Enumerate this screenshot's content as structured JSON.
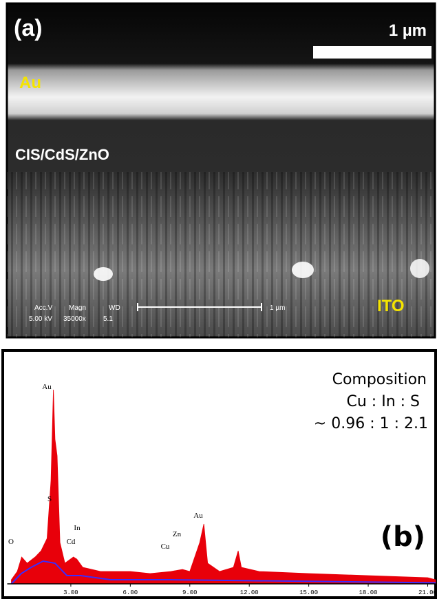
{
  "panel_a": {
    "label": "(a)",
    "scale_bar": "1 µm",
    "layers": [
      "Au",
      "CIS/CdS/ZnO",
      "ITO"
    ],
    "info_header": [
      "Acc.V",
      "Magn",
      "WD"
    ],
    "info_values": [
      "5.00 kV",
      "35000x",
      "5.1"
    ],
    "info_scale": "1 µm"
  },
  "chart_data": {
    "type": "line",
    "panel_label": "(b)",
    "composition": [
      "Composition",
      "Cu : In : S",
      "~ 0.96 : 1 : 2.1"
    ],
    "annotations": [
      "Au",
      "S",
      "O",
      "In",
      "Cd",
      "Cu",
      "Zn",
      "Au"
    ],
    "xlim": [
      0,
      21.4
    ],
    "ylim": [
      0,
      100
    ],
    "xticks": [
      {
        "value": 3,
        "label": "3.00"
      },
      {
        "value": 6,
        "label": "6.00"
      },
      {
        "value": 9,
        "label": "9.00"
      },
      {
        "value": 12,
        "label": "12.00"
      },
      {
        "value": 15,
        "label": "15.00"
      },
      {
        "value": 18,
        "label": "18.00"
      },
      {
        "value": 21,
        "label": "21.00"
      }
    ],
    "series": [
      {
        "color": "#e8000a",
        "fill": true,
        "x": [
          0,
          0.3,
          0.52,
          0.8,
          1.2,
          1.5,
          1.8,
          2.0,
          2.12,
          2.2,
          2.31,
          2.45,
          2.7,
          3.13,
          3.3,
          3.6,
          4.5,
          6,
          7,
          8.05,
          8.63,
          9.0,
          9.5,
          9.71,
          9.9,
          10.5,
          11.2,
          11.44,
          11.6,
          12.5,
          15,
          18,
          21,
          21.4
        ],
        "values": [
          2,
          6,
          13,
          10,
          13,
          16,
          22,
          50,
          94,
          70,
          62,
          20,
          10,
          13,
          12,
          8,
          6,
          6,
          5,
          6,
          7,
          6,
          20,
          29,
          10,
          6,
          8,
          16,
          8,
          6,
          5,
          4,
          3,
          2
        ]
      },
      {
        "color": "#3a2cff",
        "fill": false,
        "x": [
          0,
          0.5,
          1,
          1.6,
          2.2,
          2.8,
          3.5,
          5,
          8,
          21.4
        ],
        "values": [
          0,
          5,
          8,
          11,
          10,
          4,
          4,
          2,
          2,
          0.5
        ]
      }
    ]
  }
}
